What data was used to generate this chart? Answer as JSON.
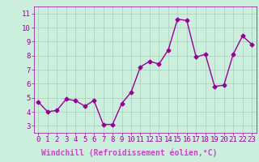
{
  "x": [
    0,
    1,
    2,
    3,
    4,
    5,
    6,
    7,
    8,
    9,
    10,
    11,
    12,
    13,
    14,
    15,
    16,
    17,
    18,
    19,
    20,
    21,
    22,
    23
  ],
  "y": [
    4.7,
    4.0,
    4.1,
    4.9,
    4.8,
    4.4,
    4.8,
    3.1,
    3.1,
    4.6,
    5.4,
    7.2,
    7.6,
    7.4,
    8.4,
    10.6,
    10.5,
    7.9,
    8.1,
    5.8,
    5.9,
    8.1,
    9.4,
    8.8
  ],
  "line_color": "#990099",
  "marker": "D",
  "marker_size": 2.5,
  "bg_color": "#cceedd",
  "grid_color": "#aaccbb",
  "xlabel": "Windchill (Refroidissement éolien,°C)",
  "xlabel_color": "#cc00cc",
  "tick_color": "#990099",
  "label_bar_color": "#6600aa",
  "label_text_color": "#cc44cc",
  "ylim": [
    2.5,
    11.5
  ],
  "xlim": [
    -0.5,
    23.5
  ],
  "yticks": [
    3,
    4,
    5,
    6,
    7,
    8,
    9,
    10,
    11
  ],
  "xticks": [
    0,
    1,
    2,
    3,
    4,
    5,
    6,
    7,
    8,
    9,
    10,
    11,
    12,
    13,
    14,
    15,
    16,
    17,
    18,
    19,
    20,
    21,
    22,
    23
  ],
  "linewidth": 1.0,
  "font_size": 6.5,
  "xlabel_font_size": 7.0
}
